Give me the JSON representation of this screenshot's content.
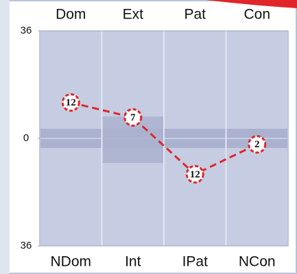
{
  "chart_data": {
    "type": "line",
    "categories": [
      "Dom",
      "Ext",
      "Pat",
      "Con"
    ],
    "bottom_categories": [
      "NDom",
      "Int",
      "IPat",
      "NCon"
    ],
    "series": [
      {
        "color": "#e0262b",
        "values": [
          12,
          7,
          -12,
          -2
        ],
        "value_labels": [
          "12",
          "7",
          "12",
          "2"
        ]
      }
    ],
    "ylim": [
      -36,
      36
    ],
    "yticks": [
      {
        "value": 36,
        "label": "36"
      },
      0,
      {
        "value": -36,
        "label": "36"
      }
    ]
  }
}
